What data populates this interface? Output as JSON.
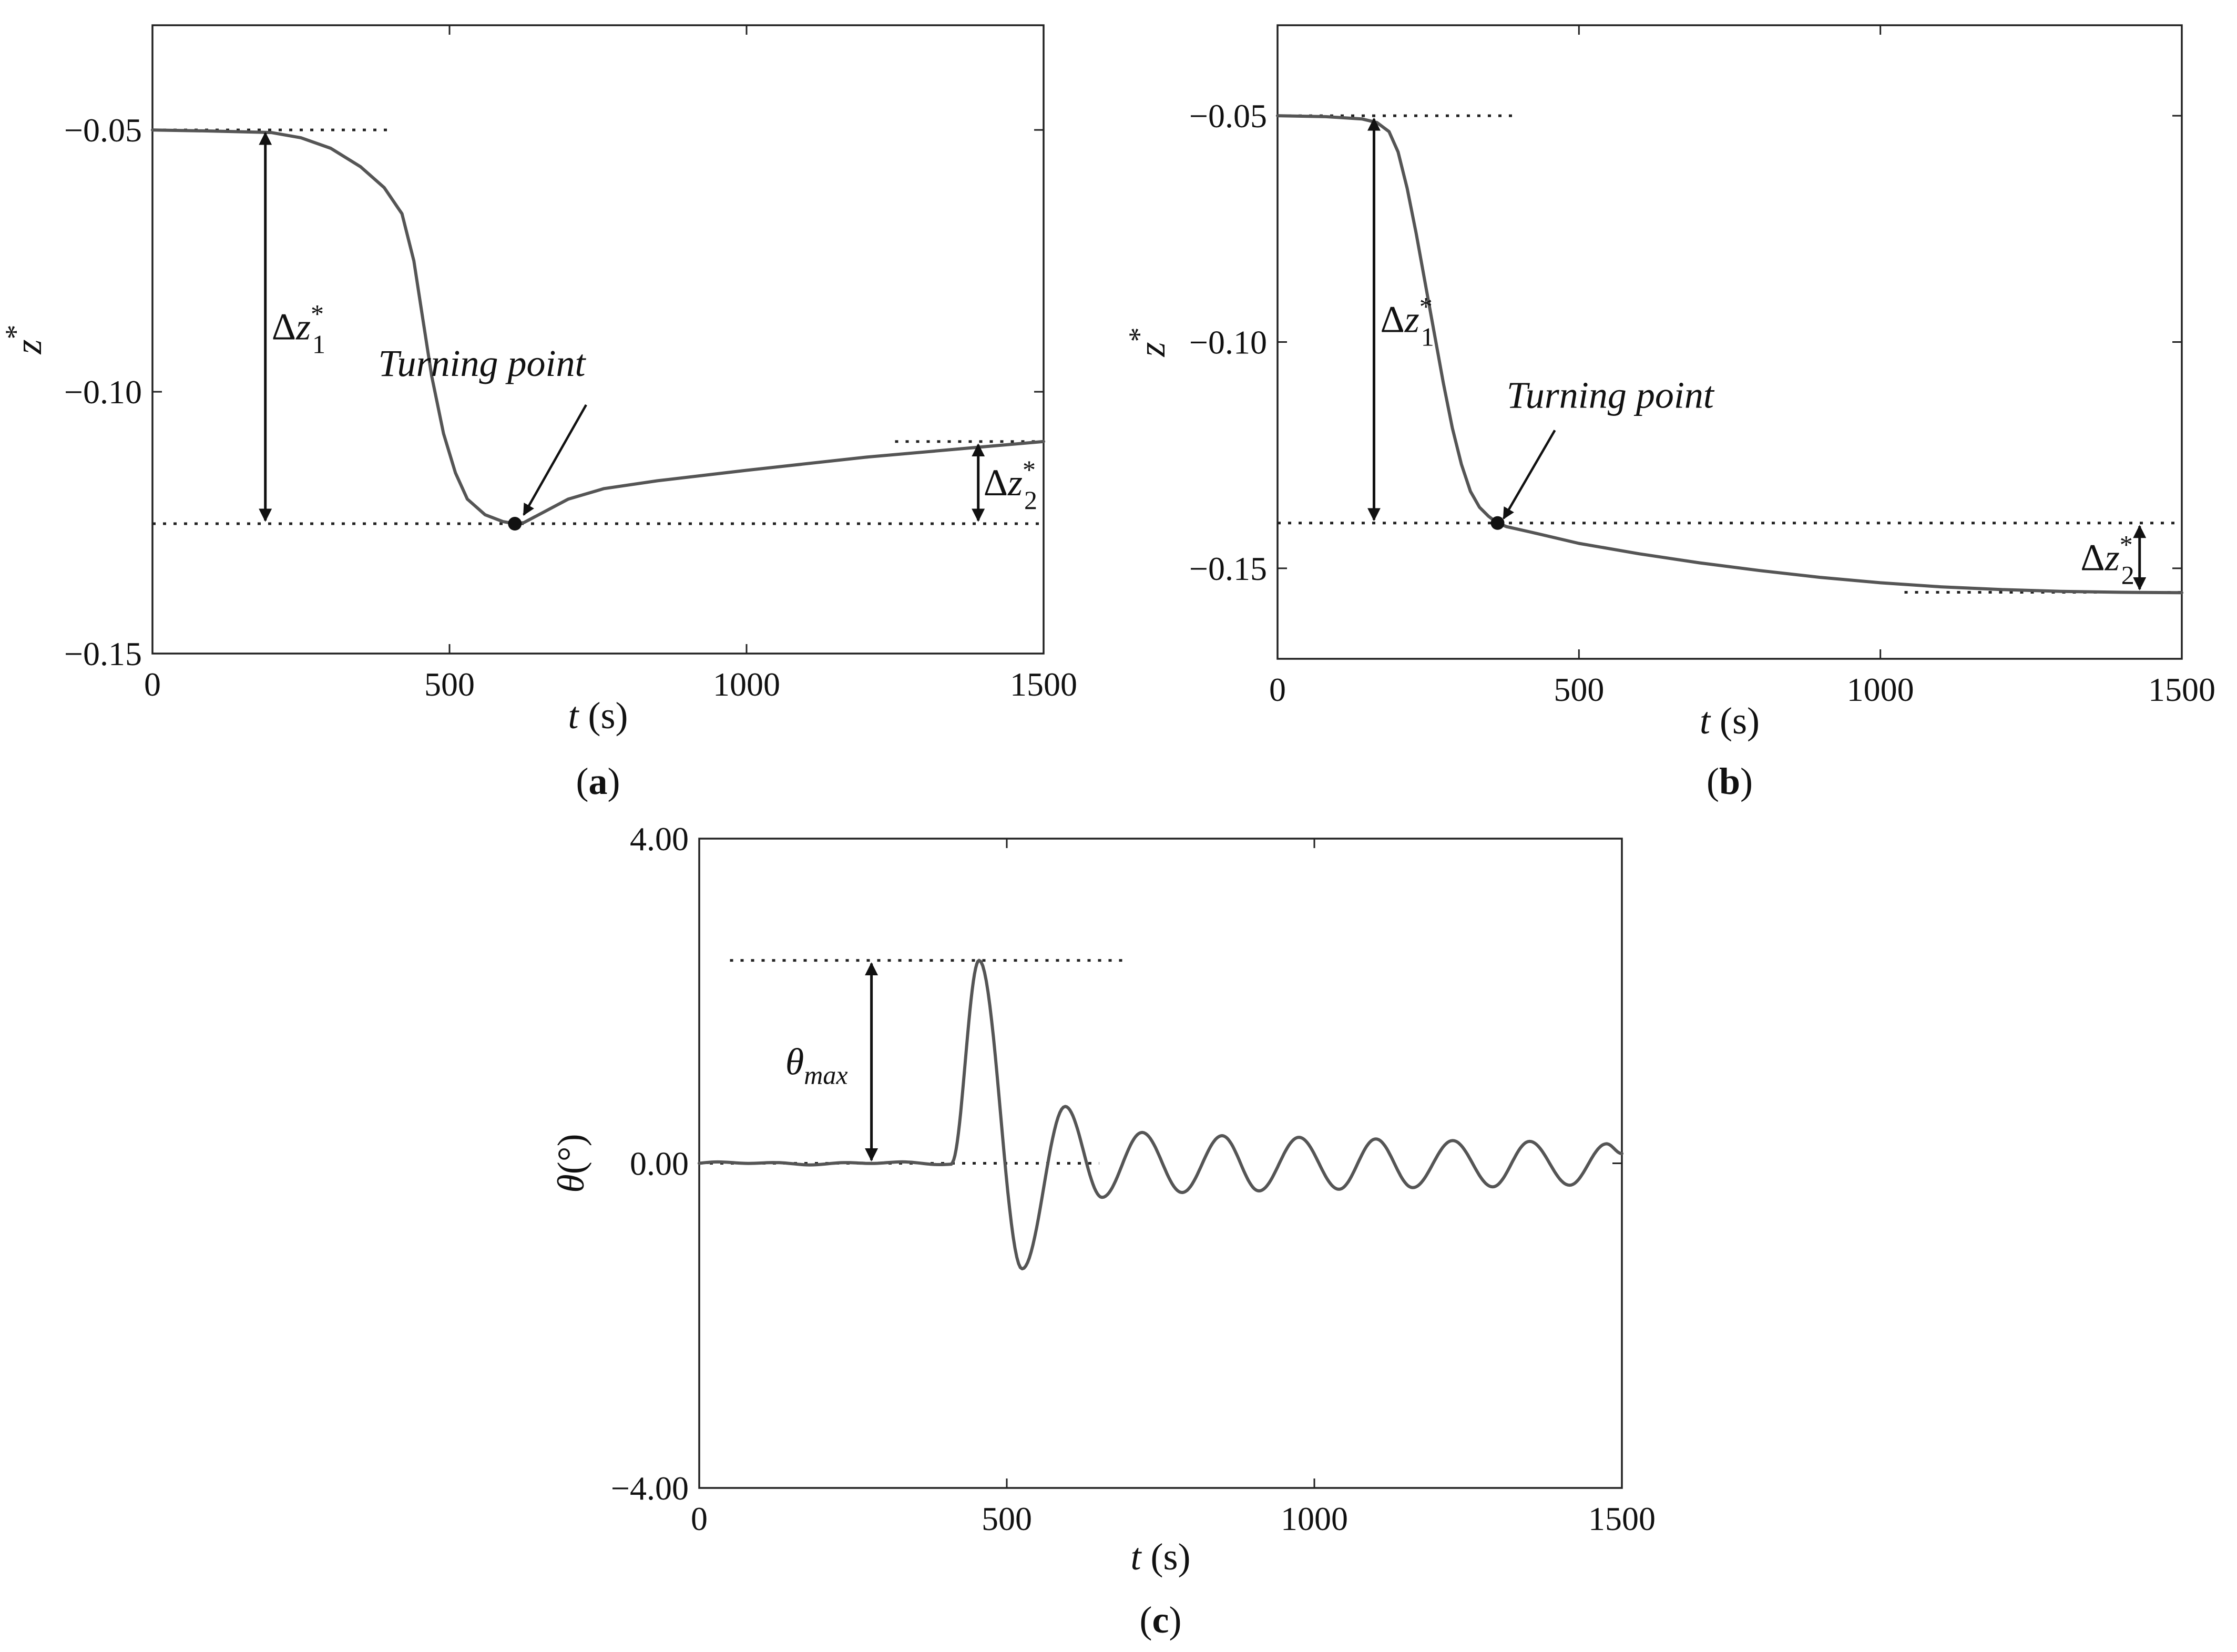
{
  "chart_data": [
    {
      "type": "line",
      "panel_label": "a",
      "xlabel_var": "t",
      "xlabel_unit": " (s)",
      "ylabel": "z",
      "ylabel_sup": "*",
      "xlim": [
        0,
        1500
      ],
      "ylim": [
        -0.15,
        -0.03
      ],
      "x_ticks": [
        0,
        500,
        1000,
        1500
      ],
      "x_tick_labels": [
        "0",
        "500",
        "1000",
        "1500"
      ],
      "y_ticks": [
        -0.05,
        -0.1,
        -0.15
      ],
      "y_tick_labels": [
        "−0.05",
        "−0.10",
        "−0.15"
      ],
      "series": [
        {
          "x": [
            0,
            100,
            200,
            250,
            300,
            350,
            390,
            420,
            440,
            455,
            470,
            490,
            510,
            530,
            560,
            590,
            610,
            625,
            650,
            700,
            760,
            850,
            1000,
            1200,
            1400,
            1500
          ],
          "y": [
            -0.05,
            -0.0502,
            -0.0505,
            -0.0515,
            -0.0535,
            -0.057,
            -0.061,
            -0.066,
            -0.075,
            -0.086,
            -0.097,
            -0.108,
            -0.1155,
            -0.1205,
            -0.1235,
            -0.1248,
            -0.1252,
            -0.125,
            -0.1235,
            -0.1205,
            -0.1185,
            -0.117,
            -0.115,
            -0.1125,
            -0.1105,
            -0.1095
          ]
        }
      ],
      "marker": {
        "x": 610,
        "y": -0.1252
      },
      "reference_lines": [
        {
          "y": -0.05,
          "x": [
            0,
            400
          ]
        },
        {
          "y": -0.1252,
          "x": [
            0,
            1500
          ]
        },
        {
          "y": -0.1095,
          "x": [
            1250,
            1500
          ]
        }
      ],
      "annotations": {
        "delta1": {
          "base": "Δz",
          "sub": "1",
          "sup": "*",
          "x": 190,
          "y_from": -0.05,
          "y_to": -0.1252
        },
        "delta2": {
          "base": "Δz",
          "sub": "2",
          "sup": "*",
          "x": 1390,
          "y_from": -0.1095,
          "y_to": -0.1252
        },
        "turning": {
          "text": "Turning point",
          "text_x": 380,
          "text_y": -0.097,
          "from_x": 730,
          "from_y": -0.1025,
          "to_x": 625,
          "to_y": -0.1235
        }
      }
    },
    {
      "type": "line",
      "panel_label": "b",
      "xlabel_var": "t",
      "xlabel_unit": " (s)",
      "ylabel": "z",
      "ylabel_sup": "*",
      "xlim": [
        0,
        1500
      ],
      "ylim": [
        -0.17,
        -0.03
      ],
      "x_ticks": [
        0,
        500,
        1000,
        1500
      ],
      "x_tick_labels": [
        "0",
        "500",
        "1000",
        "1500"
      ],
      "y_ticks": [
        -0.05,
        -0.1,
        -0.15
      ],
      "y_tick_labels": [
        "−0.05",
        "−0.10",
        "−0.15"
      ],
      "series": [
        {
          "x": [
            0,
            80,
            140,
            165,
            185,
            200,
            215,
            230,
            245,
            260,
            275,
            290,
            305,
            320,
            335,
            350,
            365,
            380,
            420,
            500,
            600,
            700,
            800,
            900,
            1000,
            1100,
            1200,
            1300,
            1400,
            1500
          ],
          "y": [
            -0.05,
            -0.0502,
            -0.0507,
            -0.0515,
            -0.0535,
            -0.058,
            -0.066,
            -0.076,
            -0.087,
            -0.098,
            -0.109,
            -0.119,
            -0.127,
            -0.133,
            -0.1365,
            -0.1385,
            -0.14,
            -0.1408,
            -0.142,
            -0.1445,
            -0.1468,
            -0.1488,
            -0.1505,
            -0.152,
            -0.1532,
            -0.1541,
            -0.1547,
            -0.1551,
            -0.1553,
            -0.1554
          ]
        }
      ],
      "marker": {
        "x": 365,
        "y": -0.14
      },
      "reference_lines": [
        {
          "y": -0.05,
          "x": [
            0,
            390
          ]
        },
        {
          "y": -0.14,
          "x": [
            0,
            1500
          ]
        },
        {
          "y": -0.1553,
          "x": [
            1040,
            1500
          ]
        }
      ],
      "annotations": {
        "delta1": {
          "base": "Δz",
          "sub": "1",
          "sup": "*",
          "x": 160,
          "y_from": -0.05,
          "y_to": -0.14
        },
        "delta2": {
          "base": "Δz",
          "sub": "2",
          "sup": "*",
          "x": 1430,
          "y_from": -0.14,
          "y_to": -0.1553
        },
        "turning": {
          "text": "Turning point",
          "text_x": 380,
          "text_y": -0.1145,
          "from_x": 460,
          "from_y": -0.1195,
          "to_x": 375,
          "to_y": -0.139
        }
      }
    },
    {
      "type": "line",
      "panel_label": "c",
      "xlabel_var": "t",
      "xlabel_unit": " (s)",
      "ylabel_var": "θ",
      "ylabel_unit": "(°)",
      "xlim": [
        0,
        1500
      ],
      "ylim": [
        -4.0,
        4.0
      ],
      "x_ticks": [
        0,
        500,
        1000,
        1500
      ],
      "x_tick_labels": [
        "0",
        "500",
        "1000",
        "1500"
      ],
      "y_ticks": [
        4.0,
        0.0,
        -4.0
      ],
      "y_tick_labels": [
        "4.00",
        "0.00",
        "−4.00"
      ],
      "oscillation": {
        "quiet_until": 410,
        "quiet_noise": 0.02,
        "peaks": [
          {
            "x": 410,
            "y": 0.0
          },
          {
            "x": 455,
            "y": 2.5
          },
          {
            "x": 525,
            "y": -1.3
          },
          {
            "x": 595,
            "y": 0.7
          },
          {
            "x": 655,
            "y": -0.42
          },
          {
            "x": 720,
            "y": 0.38
          },
          {
            "x": 785,
            "y": -0.36
          },
          {
            "x": 850,
            "y": 0.34
          },
          {
            "x": 910,
            "y": -0.34
          },
          {
            "x": 975,
            "y": 0.32
          },
          {
            "x": 1040,
            "y": -0.32
          },
          {
            "x": 1100,
            "y": 0.3
          },
          {
            "x": 1160,
            "y": -0.3
          },
          {
            "x": 1225,
            "y": 0.28
          },
          {
            "x": 1290,
            "y": -0.29
          },
          {
            "x": 1350,
            "y": 0.27
          },
          {
            "x": 1415,
            "y": -0.27
          },
          {
            "x": 1475,
            "y": 0.24
          },
          {
            "x": 1500,
            "y": 0.12
          }
        ]
      },
      "reference_lines": [
        {
          "y": 2.5,
          "x": [
            50,
            690
          ]
        },
        {
          "y": 0.0,
          "x": [
            0,
            650
          ]
        }
      ],
      "annotations": {
        "theta_max": {
          "base": "θ",
          "sub": "max",
          "x": 280,
          "y_from": 2.5,
          "y_to": 0.0
        }
      }
    }
  ]
}
